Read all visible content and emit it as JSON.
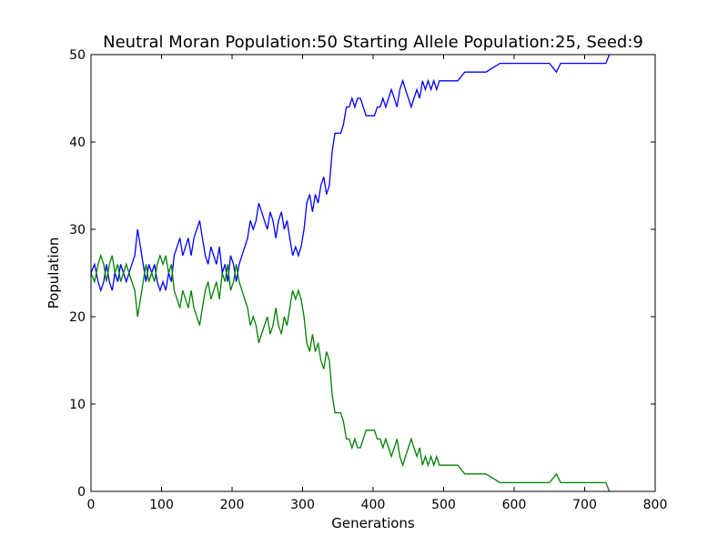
{
  "chart_data": {
    "type": "line",
    "title": "Neutral Moran Population:50 Starting Allele Population:25, Seed:9",
    "xlabel": "Generations",
    "ylabel": "Population",
    "xlim": [
      0,
      800
    ],
    "ylim": [
      0,
      50
    ],
    "xticks": [
      0,
      100,
      200,
      300,
      400,
      500,
      600,
      700,
      800
    ],
    "yticks": [
      0,
      10,
      20,
      30,
      40,
      50
    ],
    "grid": false,
    "legend": "none",
    "series": [
      {
        "color": "#0000ff",
        "points": [
          [
            0,
            25
          ],
          [
            5,
            26
          ],
          [
            10,
            24
          ],
          [
            14,
            23
          ],
          [
            18,
            24
          ],
          [
            22,
            26
          ],
          [
            26,
            24
          ],
          [
            30,
            23
          ],
          [
            34,
            25
          ],
          [
            38,
            24
          ],
          [
            42,
            26
          ],
          [
            46,
            25
          ],
          [
            50,
            24
          ],
          [
            54,
            25
          ],
          [
            58,
            26
          ],
          [
            62,
            27
          ],
          [
            66,
            30
          ],
          [
            70,
            28
          ],
          [
            74,
            26
          ],
          [
            78,
            24
          ],
          [
            82,
            26
          ],
          [
            86,
            25
          ],
          [
            90,
            26
          ],
          [
            94,
            24
          ],
          [
            98,
            23
          ],
          [
            102,
            24
          ],
          [
            106,
            23
          ],
          [
            110,
            25
          ],
          [
            114,
            24
          ],
          [
            118,
            27
          ],
          [
            122,
            28
          ],
          [
            126,
            29
          ],
          [
            130,
            27
          ],
          [
            134,
            28
          ],
          [
            138,
            29
          ],
          [
            142,
            27
          ],
          [
            146,
            29
          ],
          [
            150,
            30
          ],
          [
            154,
            31
          ],
          [
            158,
            29
          ],
          [
            162,
            27
          ],
          [
            166,
            26
          ],
          [
            170,
            28
          ],
          [
            174,
            27
          ],
          [
            178,
            26
          ],
          [
            182,
            28
          ],
          [
            186,
            25
          ],
          [
            190,
            26
          ],
          [
            194,
            24
          ],
          [
            198,
            27
          ],
          [
            202,
            26
          ],
          [
            206,
            24
          ],
          [
            210,
            26
          ],
          [
            214,
            27
          ],
          [
            218,
            28
          ],
          [
            222,
            29
          ],
          [
            226,
            31
          ],
          [
            230,
            30
          ],
          [
            234,
            31
          ],
          [
            238,
            33
          ],
          [
            242,
            32
          ],
          [
            246,
            31
          ],
          [
            250,
            30
          ],
          [
            254,
            32
          ],
          [
            258,
            31
          ],
          [
            262,
            29
          ],
          [
            266,
            31
          ],
          [
            270,
            32
          ],
          [
            274,
            30
          ],
          [
            278,
            31
          ],
          [
            282,
            29
          ],
          [
            286,
            27
          ],
          [
            290,
            28
          ],
          [
            294,
            27
          ],
          [
            298,
            28
          ],
          [
            302,
            30
          ],
          [
            306,
            33
          ],
          [
            310,
            34
          ],
          [
            314,
            32
          ],
          [
            318,
            34
          ],
          [
            322,
            33
          ],
          [
            326,
            35
          ],
          [
            330,
            36
          ],
          [
            334,
            34
          ],
          [
            338,
            35
          ],
          [
            342,
            39
          ],
          [
            346,
            41
          ],
          [
            350,
            41
          ],
          [
            354,
            41
          ],
          [
            358,
            42
          ],
          [
            362,
            44
          ],
          [
            366,
            44
          ],
          [
            370,
            45
          ],
          [
            374,
            44
          ],
          [
            378,
            45
          ],
          [
            382,
            45
          ],
          [
            386,
            44
          ],
          [
            390,
            43
          ],
          [
            394,
            43
          ],
          [
            398,
            43
          ],
          [
            402,
            43
          ],
          [
            406,
            44
          ],
          [
            410,
            44
          ],
          [
            414,
            45
          ],
          [
            418,
            44
          ],
          [
            422,
            45
          ],
          [
            426,
            46
          ],
          [
            430,
            45
          ],
          [
            434,
            44
          ],
          [
            438,
            46
          ],
          [
            442,
            47
          ],
          [
            446,
            46
          ],
          [
            450,
            45
          ],
          [
            454,
            44
          ],
          [
            458,
            45
          ],
          [
            462,
            46
          ],
          [
            466,
            45
          ],
          [
            470,
            47
          ],
          [
            474,
            46
          ],
          [
            478,
            47
          ],
          [
            482,
            46
          ],
          [
            486,
            47
          ],
          [
            490,
            46
          ],
          [
            494,
            47
          ],
          [
            500,
            47
          ],
          [
            520,
            47
          ],
          [
            530,
            48
          ],
          [
            560,
            48
          ],
          [
            580,
            49
          ],
          [
            620,
            49
          ],
          [
            650,
            49
          ],
          [
            660,
            48
          ],
          [
            666,
            49
          ],
          [
            700,
            49
          ],
          [
            730,
            49
          ],
          [
            735,
            50
          ]
        ]
      },
      {
        "color": "#008000",
        "points": [
          [
            0,
            25
          ],
          [
            5,
            24
          ],
          [
            10,
            26
          ],
          [
            14,
            27
          ],
          [
            18,
            26
          ],
          [
            22,
            24
          ],
          [
            26,
            26
          ],
          [
            30,
            27
          ],
          [
            34,
            25
          ],
          [
            38,
            26
          ],
          [
            42,
            24
          ],
          [
            46,
            25
          ],
          [
            50,
            26
          ],
          [
            54,
            25
          ],
          [
            58,
            24
          ],
          [
            62,
            23
          ],
          [
            66,
            20
          ],
          [
            70,
            22
          ],
          [
            74,
            24
          ],
          [
            78,
            26
          ],
          [
            82,
            24
          ],
          [
            86,
            25
          ],
          [
            90,
            24
          ],
          [
            94,
            26
          ],
          [
            98,
            27
          ],
          [
            102,
            26
          ],
          [
            106,
            27
          ],
          [
            110,
            25
          ],
          [
            114,
            26
          ],
          [
            118,
            23
          ],
          [
            122,
            22
          ],
          [
            126,
            21
          ],
          [
            130,
            23
          ],
          [
            134,
            22
          ],
          [
            138,
            21
          ],
          [
            142,
            23
          ],
          [
            146,
            21
          ],
          [
            150,
            20
          ],
          [
            154,
            19
          ],
          [
            158,
            21
          ],
          [
            162,
            23
          ],
          [
            166,
            24
          ],
          [
            170,
            22
          ],
          [
            174,
            23
          ],
          [
            178,
            24
          ],
          [
            182,
            22
          ],
          [
            186,
            25
          ],
          [
            190,
            24
          ],
          [
            194,
            26
          ],
          [
            198,
            23
          ],
          [
            202,
            24
          ],
          [
            206,
            26
          ],
          [
            210,
            24
          ],
          [
            214,
            23
          ],
          [
            218,
            22
          ],
          [
            222,
            21
          ],
          [
            226,
            19
          ],
          [
            230,
            20
          ],
          [
            234,
            19
          ],
          [
            238,
            17
          ],
          [
            242,
            18
          ],
          [
            246,
            19
          ],
          [
            250,
            20
          ],
          [
            254,
            18
          ],
          [
            258,
            19
          ],
          [
            262,
            21
          ],
          [
            266,
            19
          ],
          [
            270,
            18
          ],
          [
            274,
            20
          ],
          [
            278,
            19
          ],
          [
            282,
            21
          ],
          [
            286,
            23
          ],
          [
            290,
            22
          ],
          [
            294,
            23
          ],
          [
            298,
            22
          ],
          [
            302,
            20
          ],
          [
            306,
            17
          ],
          [
            310,
            16
          ],
          [
            314,
            18
          ],
          [
            318,
            16
          ],
          [
            322,
            17
          ],
          [
            326,
            15
          ],
          [
            330,
            14
          ],
          [
            334,
            16
          ],
          [
            338,
            15
          ],
          [
            342,
            11
          ],
          [
            346,
            9
          ],
          [
            350,
            9
          ],
          [
            354,
            9
          ],
          [
            358,
            8
          ],
          [
            362,
            6
          ],
          [
            366,
            6
          ],
          [
            370,
            5
          ],
          [
            374,
            6
          ],
          [
            378,
            5
          ],
          [
            382,
            5
          ],
          [
            386,
            6
          ],
          [
            390,
            7
          ],
          [
            394,
            7
          ],
          [
            398,
            7
          ],
          [
            402,
            7
          ],
          [
            406,
            6
          ],
          [
            410,
            6
          ],
          [
            414,
            5
          ],
          [
            418,
            6
          ],
          [
            422,
            5
          ],
          [
            426,
            4
          ],
          [
            430,
            5
          ],
          [
            434,
            6
          ],
          [
            438,
            4
          ],
          [
            442,
            3
          ],
          [
            446,
            4
          ],
          [
            450,
            5
          ],
          [
            454,
            6
          ],
          [
            458,
            5
          ],
          [
            462,
            4
          ],
          [
            466,
            5
          ],
          [
            470,
            3
          ],
          [
            474,
            4
          ],
          [
            478,
            3
          ],
          [
            482,
            4
          ],
          [
            486,
            3
          ],
          [
            490,
            4
          ],
          [
            494,
            3
          ],
          [
            500,
            3
          ],
          [
            520,
            3
          ],
          [
            530,
            2
          ],
          [
            560,
            2
          ],
          [
            580,
            1
          ],
          [
            620,
            1
          ],
          [
            650,
            1
          ],
          [
            660,
            2
          ],
          [
            666,
            1
          ],
          [
            700,
            1
          ],
          [
            730,
            1
          ],
          [
            735,
            0
          ]
        ]
      }
    ]
  }
}
